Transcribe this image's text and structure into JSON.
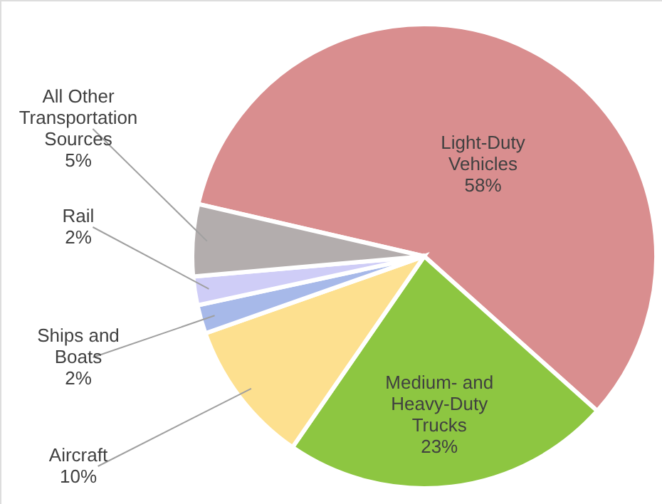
{
  "chart_data": {
    "type": "pie",
    "categories": [
      "Light-Duty Vehicles",
      "Medium- and Heavy-Duty Trucks",
      "Aircraft",
      "Ships and Boats",
      "Rail",
      "All Other Transportation Sources"
    ],
    "values": [
      58,
      23,
      10,
      2,
      2,
      5
    ],
    "colors": [
      "#d98e8f",
      "#8dc641",
      "#fde08f",
      "#a7b9e9",
      "#cfcdf7",
      "#b3adad"
    ],
    "value_labels": [
      "58%",
      "23%",
      "10%",
      "2%",
      "2%",
      "5%"
    ]
  }
}
